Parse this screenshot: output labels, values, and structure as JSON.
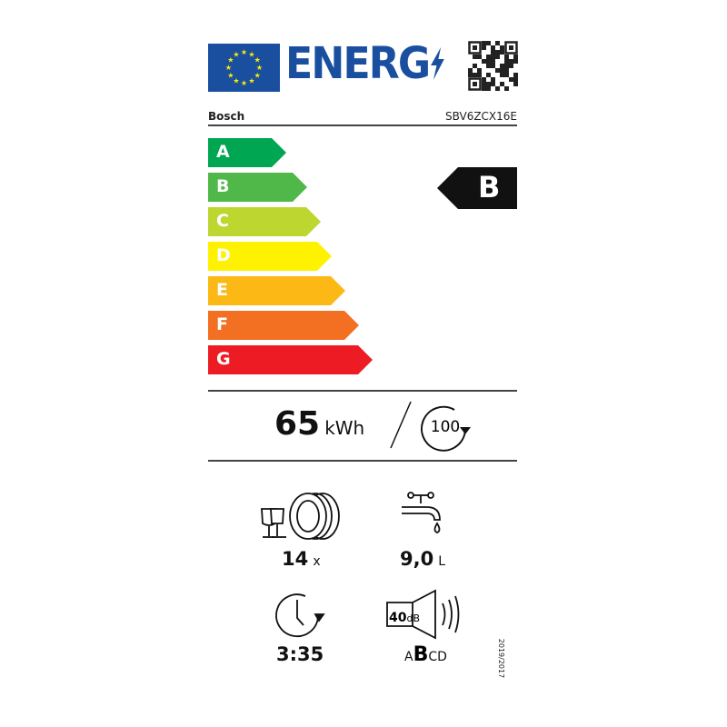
{
  "header": {
    "logo_text": "ENERG",
    "brand": "Bosch",
    "model": "SBV6ZCX16E"
  },
  "scale": {
    "classes": [
      {
        "letter": "A",
        "color": "#00a651"
      },
      {
        "letter": "B",
        "color": "#50b848"
      },
      {
        "letter": "C",
        "color": "#bed630"
      },
      {
        "letter": "D",
        "color": "#fff200"
      },
      {
        "letter": "E",
        "color": "#fcb814"
      },
      {
        "letter": "F",
        "color": "#f36f21"
      },
      {
        "letter": "G",
        "color": "#ed1c24"
      }
    ],
    "rating": "B"
  },
  "energy": {
    "value": "65",
    "unit": "kWh",
    "cycles": "100"
  },
  "specs": {
    "capacity": {
      "value": "14",
      "unit": "x"
    },
    "water": {
      "value": "9,0",
      "unit": "L"
    },
    "duration": {
      "value": "3:35"
    },
    "noise": {
      "value": "40",
      "unit": "dB",
      "class_pre": "A",
      "class_active": "B",
      "class_post": "CD"
    }
  },
  "regulation": "2019/2017"
}
